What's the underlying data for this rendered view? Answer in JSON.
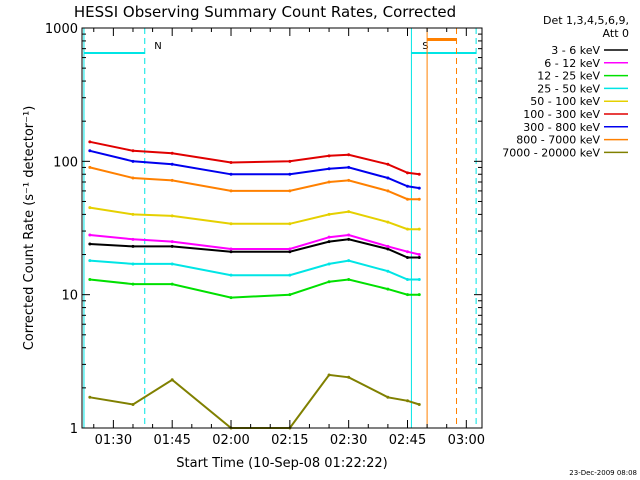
{
  "chart_data": {
    "type": "line",
    "title": "HESSI Observing Summary Count Rates, Corrected",
    "xlabel": "Start Time (10-Sep-08 01:22:22)",
    "ylabel": "Corrected Count Rate (s⁻¹ detector⁻¹)",
    "y_scale": "log",
    "ylim": [
      1,
      1000
    ],
    "x_range_minutes": [
      82,
      184
    ],
    "x_ticks": [
      "01:30",
      "01:45",
      "02:00",
      "02:15",
      "02:30",
      "02:45",
      "03:00"
    ],
    "x_tick_minutes": [
      90,
      105,
      120,
      135,
      150,
      165,
      180
    ],
    "y_ticks": [
      "1",
      "10",
      "100",
      "1000"
    ],
    "y_tick_values": [
      1,
      10,
      100,
      1000
    ],
    "legend_header": [
      "Det 1,3,4,5,6,9,",
      "Att 0"
    ],
    "legend_position": "right",
    "footer_date": "23-Dec-2009 08:08",
    "event_markers": [
      {
        "label": "N",
        "start_min": 82.5,
        "end_min": 98,
        "color": "#00e5e5"
      },
      {
        "label": "S",
        "start_min": 166,
        "end_min": 182.5,
        "color": "#00e5e5"
      }
    ],
    "saa_marker": {
      "start_min": 170,
      "end_min": 177.5,
      "color": "#ff8000"
    },
    "series": [
      {
        "name": "3 - 6 keV",
        "color": "#000000",
        "minutes": [
          84,
          95,
          105,
          120,
          135,
          145,
          150,
          160,
          165,
          168
        ],
        "values": [
          24,
          23,
          23,
          21,
          21,
          25,
          26,
          22,
          19,
          19
        ]
      },
      {
        "name": "6 - 12 keV",
        "color": "#ff00ff",
        "minutes": [
          84,
          95,
          105,
          120,
          135,
          145,
          150,
          160,
          165,
          168
        ],
        "values": [
          28,
          26,
          25,
          22,
          22,
          27,
          28,
          23,
          21,
          20
        ]
      },
      {
        "name": "12 - 25 keV",
        "color": "#00e000",
        "minutes": [
          84,
          95,
          105,
          120,
          135,
          145,
          150,
          160,
          165,
          168
        ],
        "values": [
          13,
          12,
          12,
          9.5,
          10,
          12.5,
          13,
          11,
          10,
          10
        ]
      },
      {
        "name": "25 - 50 keV",
        "color": "#00e5e5",
        "minutes": [
          84,
          95,
          105,
          120,
          135,
          145,
          150,
          160,
          165,
          168
        ],
        "values": [
          18,
          17,
          17,
          14,
          14,
          17,
          18,
          15,
          13,
          13
        ]
      },
      {
        "name": "50 - 100 keV",
        "color": "#e5d000",
        "minutes": [
          84,
          95,
          105,
          120,
          135,
          145,
          150,
          160,
          165,
          168
        ],
        "values": [
          45,
          40,
          39,
          34,
          34,
          40,
          42,
          35,
          31,
          31
        ]
      },
      {
        "name": "100 - 300 keV",
        "color": "#e00000",
        "minutes": [
          84,
          95,
          105,
          120,
          135,
          145,
          150,
          160,
          165,
          168
        ],
        "values": [
          140,
          120,
          115,
          98,
          100,
          110,
          112,
          95,
          82,
          80
        ]
      },
      {
        "name": "300 - 800 keV",
        "color": "#0000ee",
        "minutes": [
          84,
          95,
          105,
          120,
          135,
          145,
          150,
          160,
          165,
          168
        ],
        "values": [
          120,
          100,
          95,
          80,
          80,
          88,
          90,
          75,
          65,
          63
        ]
      },
      {
        "name": "800 - 7000 keV",
        "color": "#ff8000",
        "minutes": [
          84,
          95,
          105,
          120,
          135,
          145,
          150,
          160,
          165,
          168
        ],
        "values": [
          90,
          75,
          72,
          60,
          60,
          70,
          72,
          60,
          52,
          52
        ]
      },
      {
        "name": "7000 - 20000 keV",
        "color": "#808000",
        "minutes": [
          84,
          95,
          105,
          120,
          135,
          145,
          150,
          160,
          165,
          168
        ],
        "values": [
          1.7,
          1.5,
          2.3,
          1,
          1,
          2.5,
          2.4,
          1.7,
          1.6,
          1.5
        ]
      }
    ]
  }
}
